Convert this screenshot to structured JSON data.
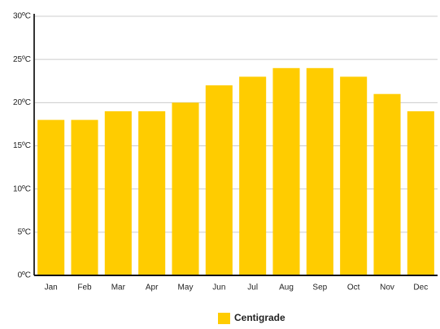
{
  "chart_data": {
    "type": "bar",
    "categories": [
      "Jan",
      "Feb",
      "Mar",
      "Apr",
      "May",
      "Jun",
      "Jul",
      "Aug",
      "Sep",
      "Oct",
      "Nov",
      "Dec"
    ],
    "series": [
      {
        "name": "Centigrade",
        "color": "#ffcc00",
        "values": [
          18,
          18,
          19,
          19,
          20,
          22,
          23,
          24,
          24,
          23,
          21,
          19
        ]
      }
    ],
    "ylim": [
      0,
      30
    ],
    "yticks": [
      {
        "value": 0,
        "label": "0ºC"
      },
      {
        "value": 5,
        "label": "5ºC"
      },
      {
        "value": 10,
        "label": "10ºC"
      },
      {
        "value": 15,
        "label": "15ºC"
      },
      {
        "value": 20,
        "label": "20ºC"
      },
      {
        "value": 25,
        "label": "25ºC"
      },
      {
        "value": 30,
        "label": "30ºC"
      }
    ],
    "grid": true,
    "legend": "bottom"
  }
}
